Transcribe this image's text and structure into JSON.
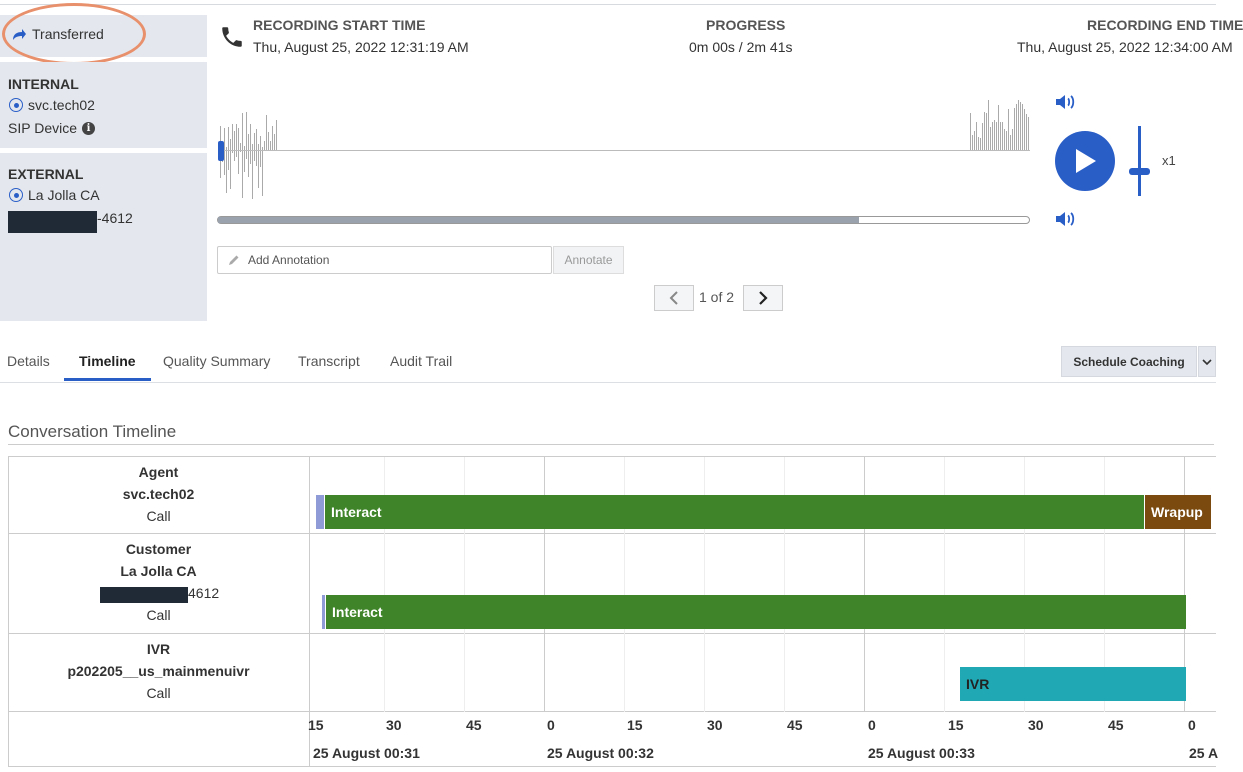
{
  "call": {
    "status": "Transferred",
    "internal": {
      "title": "INTERNAL",
      "user": "svc.tech02",
      "device": "SIP Device"
    },
    "external": {
      "title": "EXTERNAL",
      "name": "La Jolla CA",
      "number_suffix": "-4612"
    }
  },
  "header": {
    "start_label": "RECORDING START TIME",
    "start_value": "Thu, August 25, 2022 12:31:19 AM",
    "progress_label": "PROGRESS",
    "progress_value": "0m 00s / 2m 41s",
    "end_label": "RECORDING END TIME",
    "end_value": "Thu, August 25, 2022 12:34:00 AM"
  },
  "player": {
    "speed": "x1",
    "progress_fraction": 0.79
  },
  "annotation": {
    "placeholder": "Add Annotation",
    "button": "Annotate"
  },
  "pager": {
    "text": "1 of 2"
  },
  "tabs": [
    "Details",
    "Timeline",
    "Quality Summary",
    "Transcript",
    "Audit Trail"
  ],
  "active_tab": "Timeline",
  "schedule_button": "Schedule Coaching",
  "timeline": {
    "title": "Conversation Timeline",
    "rows": [
      {
        "role": "Agent",
        "name": "svc.tech02",
        "number": "",
        "type": "Call",
        "segments": [
          {
            "label": "",
            "color": "#8f9bd6"
          },
          {
            "label": "Interact",
            "color": "#3f8428"
          },
          {
            "label": "Wrapup",
            "color": "#7a4a0e"
          }
        ]
      },
      {
        "role": "Customer",
        "name": "La Jolla CA",
        "number": "4612",
        "type": "Call",
        "segments": [
          {
            "label": "",
            "color": "#8f9bd6"
          },
          {
            "label": "Interact",
            "color": "#3f8428"
          }
        ]
      },
      {
        "role": "IVR",
        "name": "p202205__us_mainmenuivr",
        "number": "",
        "type": "Call",
        "segments": [
          {
            "label": "IVR",
            "color": "#20a8b4"
          }
        ]
      }
    ],
    "ticks": [
      "15",
      "30",
      "45",
      "0",
      "15",
      "30",
      "45",
      "0",
      "15",
      "30",
      "45",
      "0"
    ],
    "dates": [
      "25 August 00:31",
      "25 August 00:32",
      "25 August 00:33",
      "25 A"
    ]
  },
  "colors": {
    "accent": "#2a5ec7",
    "highlight_circle": "#e8906b",
    "panel_bg": "#e4e8ee"
  }
}
